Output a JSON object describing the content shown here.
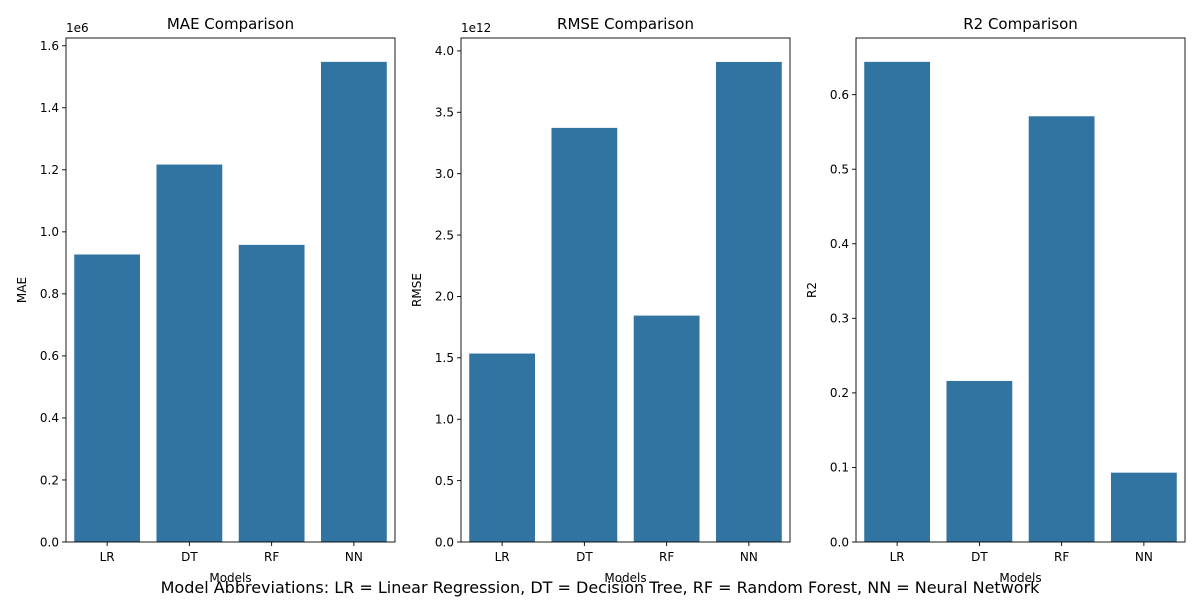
{
  "caption": "Model Abbreviations: LR = Linear Regression, DT = Decision Tree, RF = Random Forest, NN = Neural Network",
  "colors": {
    "bar": "#3274a1",
    "axis": "#000000",
    "background": "#ffffff"
  },
  "chart_data": [
    {
      "type": "bar",
      "title": "MAE Comparison",
      "xlabel": "Models",
      "ylabel": "MAE",
      "offset_label": "1e6",
      "categories": [
        "LR",
        "DT",
        "RF",
        "NN"
      ],
      "values": [
        927000,
        1217000,
        958000,
        1548000
      ],
      "ylim": [
        0,
        1625000
      ],
      "yticks": [
        0,
        200000,
        400000,
        600000,
        800000,
        1000000,
        1200000,
        1400000,
        1600000
      ],
      "ytick_labels": [
        "0.0",
        "0.2",
        "0.4",
        "0.6",
        "0.8",
        "1.0",
        "1.2",
        "1.4",
        "1.6"
      ],
      "grid": false,
      "legend": "none"
    },
    {
      "type": "bar",
      "title": "RMSE Comparison",
      "xlabel": "Models",
      "ylabel": "RMSE",
      "offset_label": "1e12",
      "categories": [
        "LR",
        "DT",
        "RF",
        "NN"
      ],
      "values": [
        1535000000000,
        3373000000000,
        1844000000000,
        3910000000000
      ],
      "ylim": [
        0,
        4105000000000
      ],
      "yticks": [
        0,
        500000000000,
        1000000000000,
        1500000000000,
        2000000000000,
        2500000000000,
        3000000000000,
        3500000000000,
        4000000000000
      ],
      "ytick_labels": [
        "0.0",
        "0.5",
        "1.0",
        "1.5",
        "2.0",
        "2.5",
        "3.0",
        "3.5",
        "4.0"
      ],
      "grid": false,
      "legend": "none"
    },
    {
      "type": "bar",
      "title": "R2 Comparison",
      "xlabel": "Models",
      "ylabel": "R2",
      "offset_label": "",
      "categories": [
        "LR",
        "DT",
        "RF",
        "NN"
      ],
      "values": [
        0.644,
        0.216,
        0.571,
        0.093
      ],
      "ylim": [
        0,
        0.676
      ],
      "yticks": [
        0,
        0.1,
        0.2,
        0.3,
        0.4,
        0.5,
        0.6
      ],
      "ytick_labels": [
        "0.0",
        "0.1",
        "0.2",
        "0.3",
        "0.4",
        "0.5",
        "0.6"
      ],
      "grid": false,
      "legend": "none"
    }
  ]
}
